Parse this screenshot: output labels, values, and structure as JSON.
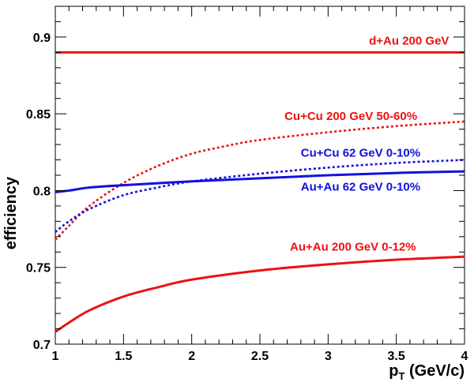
{
  "chart_data": {
    "type": "line",
    "title": "",
    "xlabel": {
      "main": "p",
      "sub": "T",
      "rest": " (GeV/c)"
    },
    "ylabel": "efficiency",
    "xlim": [
      1,
      4
    ],
    "ylim": [
      0.7,
      0.92
    ],
    "xticks": [
      1,
      1.5,
      2,
      2.5,
      3,
      3.5,
      4
    ],
    "xtick_labels": [
      "1",
      "1.5",
      "2",
      "2.5",
      "3",
      "3.5",
      "4"
    ],
    "yticks": [
      0.7,
      0.75,
      0.8,
      0.85,
      0.9
    ],
    "ytick_labels": [
      "0.7",
      "0.75",
      "0.8",
      "0.85",
      "0.9"
    ],
    "grid": false,
    "series": [
      {
        "name": "d+Au 200 GeV",
        "color": "#ee1111",
        "style": "solid",
        "x": [
          1,
          1.5,
          2,
          2.5,
          3,
          3.5,
          4
        ],
        "y": [
          0.89,
          0.89,
          0.89,
          0.89,
          0.89,
          0.89,
          0.89
        ]
      },
      {
        "name": "Cu+Cu 200 GeV 50-60%",
        "color": "#ee1111",
        "style": "dotted",
        "x": [
          1,
          1.1,
          1.25,
          1.5,
          1.75,
          2,
          2.25,
          2.5,
          3,
          3.5,
          4
        ],
        "y": [
          0.768,
          0.777,
          0.79,
          0.805,
          0.816,
          0.824,
          0.829,
          0.833,
          0.838,
          0.842,
          0.845
        ]
      },
      {
        "name": "Cu+Cu 62 GeV 0-10%",
        "color": "#1111dd",
        "style": "dotted",
        "x": [
          1,
          1.1,
          1.25,
          1.5,
          1.75,
          2,
          2.5,
          3,
          3.5,
          4
        ],
        "y": [
          0.773,
          0.78,
          0.788,
          0.797,
          0.802,
          0.806,
          0.811,
          0.815,
          0.818,
          0.82
        ]
      },
      {
        "name": "Au+Au 62 GeV 0-10%",
        "color": "#1111dd",
        "style": "solid",
        "x": [
          1,
          1.1,
          1.25,
          1.5,
          2,
          2.5,
          3,
          3.5,
          4
        ],
        "y": [
          0.799,
          0.8,
          0.802,
          0.8035,
          0.806,
          0.808,
          0.81,
          0.8115,
          0.8125
        ]
      },
      {
        "name": "Au+Au 200 GeV 0-12%",
        "color": "#ee1111",
        "style": "solid",
        "x": [
          1,
          1.1,
          1.25,
          1.5,
          1.75,
          2,
          2.5,
          3,
          3.5,
          4
        ],
        "y": [
          0.708,
          0.714,
          0.722,
          0.731,
          0.737,
          0.742,
          0.748,
          0.752,
          0.755,
          0.757
        ]
      }
    ],
    "labels": [
      {
        "series": 0,
        "text": "d+Au 200 GeV",
        "x": 3.3,
        "y": 0.895,
        "color": "#ee1111"
      },
      {
        "series": 1,
        "text": "Cu+Cu 200 GeV 50-60%",
        "x": 2.68,
        "y": 0.846,
        "color": "#ee1111"
      },
      {
        "series": 2,
        "text": "Cu+Cu 62 GeV 0-10%",
        "x": 2.8,
        "y": 0.822,
        "color": "#1111dd"
      },
      {
        "series": 3,
        "text": "Au+Au 62 GeV 0-10%",
        "x": 2.8,
        "y": 0.8,
        "color": "#1111dd"
      },
      {
        "series": 4,
        "text": "Au+Au 200 GeV 0-12%",
        "x": 2.72,
        "y": 0.761,
        "color": "#ee1111"
      }
    ]
  }
}
